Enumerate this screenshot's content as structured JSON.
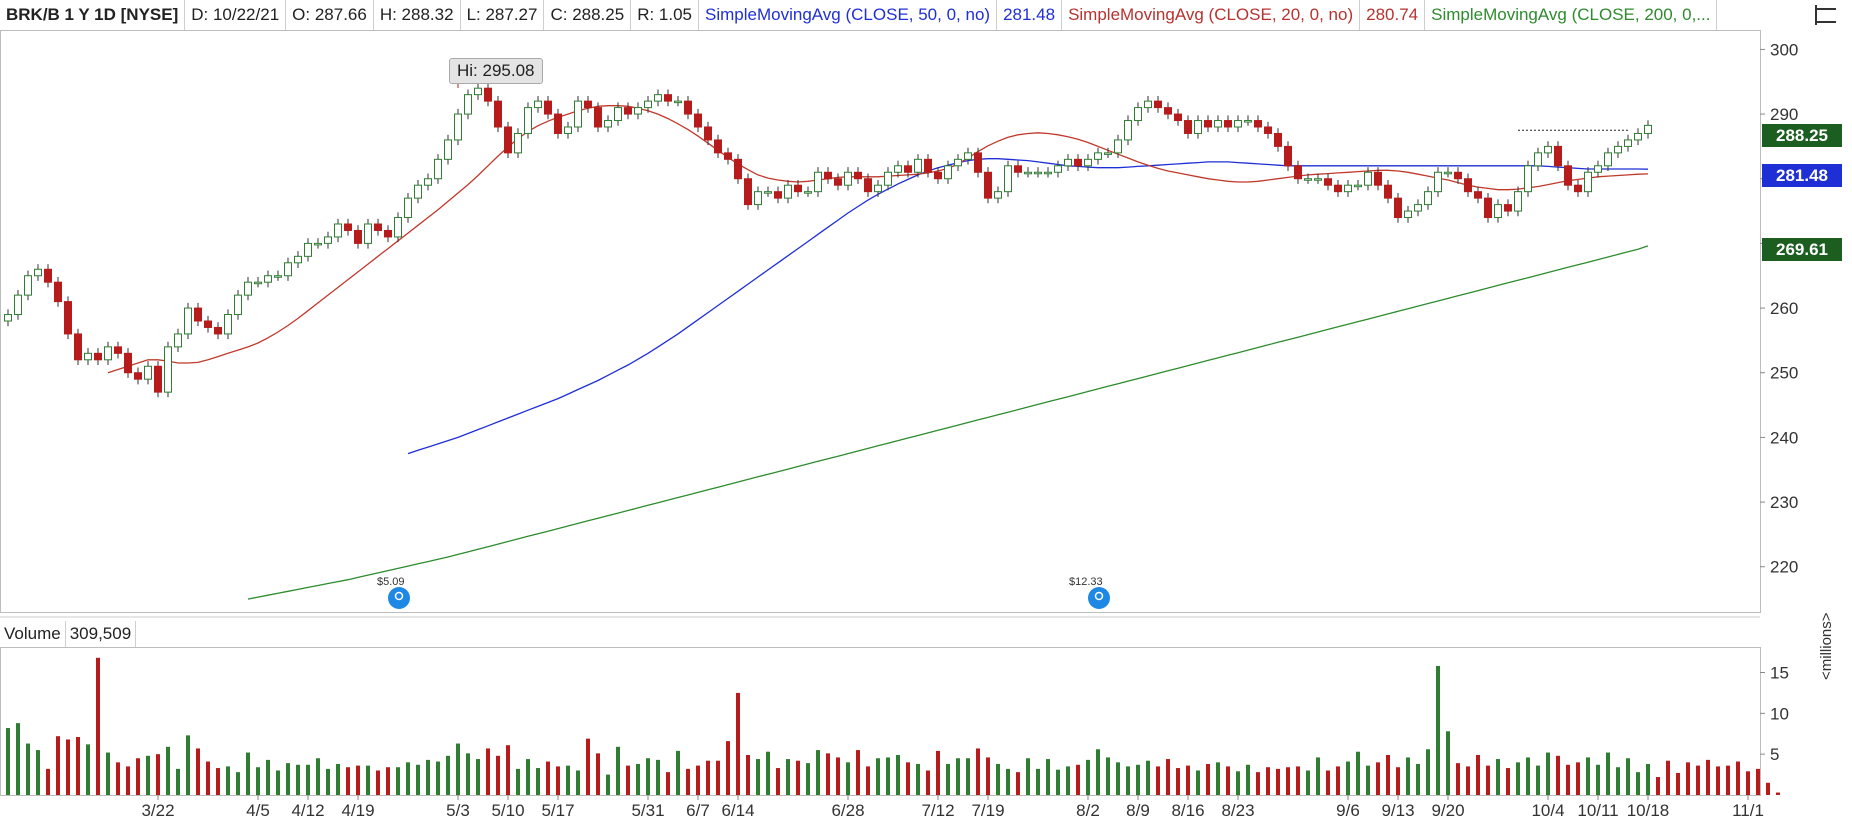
{
  "header": {
    "symbol": "BRK/B 1 Y 1D [NYSE]",
    "date": "D: 10/22/21",
    "open": "O: 287.66",
    "high": "H: 288.32",
    "low": "L: 287.27",
    "close": "C: 288.25",
    "range": "R: 1.05",
    "sma50_label": "SimpleMovingAvg (CLOSE, 50, 0, no)",
    "sma50_value": "281.48",
    "sma20_label": "SimpleMovingAvg (CLOSE, 20, 0, no)",
    "sma20_value": "280.74",
    "sma200_label": "SimpleMovingAvg (CLOSE, 200, 0,..."
  },
  "price_tags": {
    "last": "288.25",
    "sma50": "281.48",
    "sma200": "269.61"
  },
  "hi_callout": "Hi: 295.08",
  "dividends": [
    "$5.09",
    "$12.33"
  ],
  "volume_panel": {
    "label": "Volume",
    "value": "309,509",
    "units": "<millions>"
  },
  "colors": {
    "up": "#2e7d32",
    "down": "#b71c1c",
    "sma50": "#1f2fd6",
    "sma20": "#c0392b",
    "sma200": "#2e8b2e",
    "tag_last": "#1b5e20",
    "tag_sma50": "#1f2fd6",
    "tag_sma200": "#1b5e20"
  },
  "icons": {
    "menu": "menu-icon",
    "dividend": "dividend-icon"
  },
  "chart_data": {
    "type": "candlestick",
    "price_axis": {
      "ticks": [
        220,
        230,
        240,
        250,
        260,
        270,
        280,
        290,
        300
      ],
      "ylim": [
        213,
        303
      ]
    },
    "volume_axis": {
      "ticks": [
        5,
        10,
        15
      ],
      "ylim": [
        0,
        18
      ]
    },
    "x_tick_labels": [
      "3/22",
      "4/5",
      "4/12",
      "4/19",
      "5/3",
      "5/10",
      "5/17",
      "5/31",
      "6/7",
      "6/14",
      "6/28",
      "7/12",
      "7/19",
      "8/2",
      "8/9",
      "8/16",
      "8/23",
      "9/6",
      "9/13",
      "9/20",
      "10/4",
      "10/11",
      "10/18",
      "11/1"
    ],
    "x_tick_index": [
      15,
      25,
      30,
      35,
      45,
      50,
      55,
      64,
      69,
      73,
      84,
      93,
      98,
      108,
      113,
      118,
      123,
      134,
      139,
      144,
      154,
      159,
      164,
      174
    ],
    "hi_point": {
      "label": "Hi: 295.08",
      "index": 45,
      "value": 295.08
    },
    "dividend_index": [
      39,
      109
    ],
    "candles_close": [
      259,
      262,
      265,
      266,
      264,
      261,
      256,
      252,
      253,
      252,
      254,
      253,
      250,
      249,
      251,
      247,
      254,
      256,
      260,
      258,
      257,
      256,
      259,
      262,
      264,
      264,
      265,
      265,
      267,
      268,
      270,
      270,
      271,
      273,
      272,
      270,
      273,
      272,
      271,
      274,
      277,
      279,
      280,
      283,
      286,
      290,
      293,
      294,
      292,
      288,
      284,
      287,
      291,
      292,
      290,
      287,
      288,
      292,
      291,
      288,
      289,
      291,
      290,
      291,
      292,
      293,
      292,
      292,
      290,
      288,
      286,
      284,
      283,
      280,
      276,
      278,
      278,
      277,
      279,
      278,
      278,
      281,
      280,
      279,
      281,
      280,
      278,
      279,
      281,
      282,
      281,
      283,
      281,
      280,
      282,
      283,
      284,
      281,
      277,
      278,
      282,
      281,
      281,
      281,
      281,
      282,
      283,
      282,
      283,
      284,
      284,
      286,
      289,
      291,
      292,
      291,
      290,
      289,
      287,
      289,
      288,
      289,
      288,
      289,
      289,
      288,
      287,
      285,
      282,
      280,
      280,
      280,
      279,
      278,
      279,
      279,
      281,
      279,
      277,
      274,
      275,
      276,
      278,
      281,
      281,
      280,
      278,
      277,
      274,
      276,
      275,
      278,
      282,
      284,
      285,
      282,
      279,
      278,
      281,
      282,
      284,
      285,
      286,
      287,
      288.25
    ],
    "volume": [
      8.2,
      8.8,
      6.3,
      5.5,
      3.2,
      7.2,
      6.8,
      7.1,
      6.2,
      16.8,
      5.2,
      4.0,
      3.5,
      4.5,
      4.8,
      5.0,
      5.9,
      3.2,
      7.3,
      5.7,
      4.1,
      3.3,
      3.5,
      2.8,
      5.2,
      3.4,
      4.3,
      3.0,
      3.9,
      3.7,
      3.7,
      4.5,
      3.2,
      3.8,
      3.4,
      3.6,
      3.6,
      3.0,
      3.4,
      3.4,
      4.0,
      3.7,
      4.3,
      4.1,
      4.8,
      6.3,
      5.1,
      4.4,
      5.7,
      4.8,
      6.1,
      3.2,
      4.4,
      3.3,
      4.1,
      3.5,
      3.6,
      3.0,
      6.9,
      5.1,
      2.5,
      5.9,
      3.6,
      3.8,
      4.5,
      4.3,
      2.8,
      5.4,
      3.2,
      3.6,
      4.2,
      4.2,
      6.6,
      12.5,
      4.9,
      4.4,
      5.3,
      3.3,
      4.4,
      4.2,
      3.9,
      5.5,
      5.1,
      4.6,
      4.0,
      5.5,
      3.5,
      4.5,
      4.6,
      4.9,
      4.0,
      3.8,
      3.0,
      5.4,
      3.8,
      4.5,
      4.5,
      5.7,
      4.6,
      3.8,
      3.2,
      2.8,
      4.5,
      3.2,
      4.4,
      3.1,
      3.5,
      3.7,
      4.3,
      5.6,
      4.6,
      4.0,
      3.5,
      3.7,
      4.2,
      3.5,
      4.4,
      3.3,
      3.6,
      3.0,
      3.8,
      4.0,
      3.5,
      2.9,
      3.7,
      2.8,
      3.4,
      3.2,
      3.4,
      3.5,
      3.0,
      4.6,
      3.0,
      3.5,
      4.1,
      5.3,
      3.6,
      4.0,
      4.9,
      3.4,
      4.6,
      3.8,
      5.6,
      15.8,
      7.8,
      3.9,
      3.5,
      4.9,
      3.6,
      4.4,
      3.3,
      4.0,
      4.6,
      3.6,
      5.2,
      4.8,
      3.7,
      4.0,
      4.6,
      3.7,
      5.2,
      3.4,
      4.5,
      2.8,
      3.8,
      2.2,
      4.2,
      2.7,
      4.0,
      3.6,
      4.3,
      3.5,
      3.6,
      4.1,
      2.9,
      3.2,
      1.5,
      0.3
    ],
    "sma20": [
      250,
      250.5,
      251,
      251.5,
      252,
      252,
      251.8,
      251.5,
      251.5,
      251.6,
      252,
      252.5,
      253,
      253.5,
      254,
      254.6,
      255.4,
      256.3,
      257.3,
      258.4,
      259.6,
      260.8,
      262,
      263.2,
      264.4,
      265.6,
      266.8,
      268,
      269.2,
      270.4,
      271.6,
      272.8,
      274,
      275.2,
      276.5,
      277.8,
      279.1,
      280.5,
      282,
      283.5,
      284.9,
      286.2,
      287.3,
      288.2,
      288.9,
      289.5,
      290,
      290.5,
      290.9,
      291.2,
      291.3,
      291.3,
      291.2,
      290.9,
      290.5,
      290,
      289.3,
      288.5,
      287.6,
      286.6,
      285.5,
      284.4,
      283.3,
      282.3,
      281.4,
      280.6,
      280.1,
      279.8,
      279.6,
      279.5,
      279.6,
      279.8,
      280,
      280.2,
      280.3,
      280.3,
      280.3,
      280.3,
      280.4,
      280.5,
      280.6,
      280.7,
      280.9,
      281.2,
      281.6,
      282.3,
      283.2,
      284.2,
      285.1,
      285.8,
      286.4,
      286.8,
      287,
      287.1,
      287,
      286.8,
      286.5,
      286.1,
      285.6,
      285,
      284.4,
      283.8,
      283.2,
      282.6,
      282.1,
      281.6,
      281.2,
      280.9,
      280.6,
      280.3,
      280,
      279.8,
      279.6,
      279.5,
      279.5,
      279.6,
      279.8,
      280,
      280.2,
      280.4,
      280.6,
      280.7,
      280.8,
      280.9,
      281,
      281.1,
      281.2,
      281.3,
      281.3,
      281.2,
      281,
      280.7,
      280.4,
      280.1,
      279.8,
      279.4,
      279,
      278.7,
      278.5,
      278.3,
      278.3,
      278.4,
      278.6,
      278.8,
      279.1,
      279.4,
      279.7,
      279.9,
      280.1,
      280.3,
      280.4,
      280.5,
      280.6,
      280.7,
      280.74
    ],
    "sma50": [
      237.5,
      238,
      238.5,
      239,
      239.5,
      240,
      240.6,
      241.2,
      241.8,
      242.4,
      243,
      243.6,
      244.2,
      244.8,
      245.4,
      246,
      246.7,
      247.4,
      248.1,
      248.8,
      249.6,
      250.4,
      251.2,
      252.1,
      253,
      254,
      255,
      256,
      257.1,
      258.2,
      259.3,
      260.4,
      261.5,
      262.6,
      263.7,
      264.8,
      265.9,
      267,
      268.1,
      269.2,
      270.3,
      271.4,
      272.5,
      273.6,
      274.7,
      275.7,
      276.7,
      277.6,
      278.4,
      279.2,
      279.9,
      280.6,
      281.2,
      281.7,
      282.1,
      282.5,
      282.8,
      283,
      283.1,
      283.1,
      283,
      282.9,
      282.8,
      282.6,
      282.4,
      282.2,
      282,
      281.9,
      281.8,
      281.7,
      281.7,
      281.7,
      281.8,
      281.9,
      282,
      282.1,
      282.2,
      282.3,
      282.4,
      282.5,
      282.6,
      282.6,
      282.6,
      282.5,
      282.4,
      282.3,
      282.2,
      282.1,
      282,
      282,
      282,
      282,
      282,
      282,
      282,
      282,
      282,
      282,
      282,
      282,
      282,
      282,
      282,
      282,
      282,
      282,
      282,
      282,
      282,
      282,
      282,
      282,
      282,
      282,
      281.9,
      281.8,
      281.7,
      281.6,
      281.5,
      281.5,
      281.5,
      281.5,
      281.5,
      281.5,
      281.48
    ],
    "sma200": [
      215,
      215.3,
      215.6,
      215.9,
      216.2,
      216.5,
      216.8,
      217.1,
      217.4,
      217.7,
      218,
      218.35,
      218.7,
      219.05,
      219.4,
      219.75,
      220.1,
      220.45,
      220.8,
      221.15,
      221.5,
      221.9,
      222.3,
      222.7,
      223.1,
      223.5,
      223.9,
      224.3,
      224.7,
      225.1,
      225.5,
      225.9,
      226.3,
      226.7,
      227.1,
      227.5,
      227.9,
      228.3,
      228.7,
      229.1,
      229.5,
      229.9,
      230.3,
      230.7,
      231.1,
      231.5,
      231.9,
      232.3,
      232.7,
      233.1,
      233.5,
      233.9,
      234.3,
      234.7,
      235.1,
      235.5,
      235.9,
      236.3,
      236.7,
      237.1,
      237.5,
      237.9,
      238.3,
      238.7,
      239.1,
      239.5,
      239.9,
      240.3,
      240.7,
      241.1,
      241.5,
      241.9,
      242.3,
      242.7,
      243.1,
      243.5,
      243.9,
      244.3,
      244.7,
      245.1,
      245.5,
      245.9,
      246.3,
      246.7,
      247.1,
      247.5,
      247.9,
      248.3,
      248.7,
      249.1,
      249.5,
      249.9,
      250.3,
      250.7,
      251.1,
      251.5,
      251.9,
      252.3,
      252.7,
      253.1,
      253.5,
      253.9,
      254.3,
      254.7,
      255.1,
      255.5,
      255.9,
      256.3,
      256.7,
      257.1,
      257.5,
      257.9,
      258.3,
      258.7,
      259.1,
      259.5,
      259.9,
      260.3,
      260.7,
      261.1,
      261.5,
      261.9,
      262.3,
      262.7,
      263.1,
      263.5,
      263.9,
      264.3,
      264.7,
      265.1,
      265.5,
      265.9,
      266.3,
      266.7,
      267.1,
      267.5,
      267.9,
      268.3,
      268.7,
      269.1,
      269.61
    ]
  }
}
